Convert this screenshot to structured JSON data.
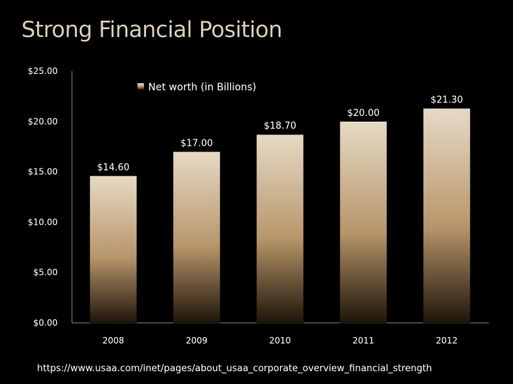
{
  "slide": {
    "title": "Strong Financial Position",
    "source": "https://www.usaa.com/inet/pages/about_usaa_corporate_overview_financial_strength"
  },
  "colors": {
    "background": "#000000",
    "axis": "#8a8a8a",
    "bar_top": "#e6dac6",
    "bar_mid": "#b8966a",
    "bar_bottom": "#1e140a",
    "title": "#d8ccb9"
  },
  "chart_data": {
    "type": "bar",
    "categories": [
      "2008",
      "2009",
      "2010",
      "2011",
      "2012"
    ],
    "series": [
      {
        "name": "Net worth (in Billions)",
        "values": [
          14.6,
          17.0,
          18.7,
          20.0,
          21.3
        ]
      }
    ],
    "data_labels": [
      "$14.60",
      "$17.00",
      "$18.70",
      "$20.00",
      "$21.30"
    ],
    "yticks": [
      "$0.00",
      "$5.00",
      "$10.00",
      "$15.00",
      "$20.00",
      "$25.00"
    ],
    "ylim": [
      0,
      25
    ],
    "grid": false,
    "legend_position": "top-center"
  }
}
